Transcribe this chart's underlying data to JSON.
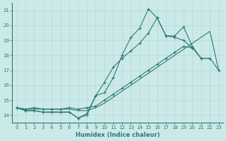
{
  "xlabel": "Humidex (Indice chaleur)",
  "xlim": [
    -0.5,
    23.5
  ],
  "ylim": [
    13.5,
    21.5
  ],
  "yticks": [
    14,
    15,
    16,
    17,
    18,
    19,
    20,
    21
  ],
  "xticks": [
    0,
    1,
    2,
    3,
    4,
    5,
    6,
    7,
    8,
    9,
    10,
    11,
    12,
    13,
    14,
    15,
    16,
    17,
    18,
    19,
    20,
    21,
    22,
    23
  ],
  "background_color": "#cce9e9",
  "grid_color": "#b0d8d8",
  "line_color": "#2d7a6e",
  "line1_y": [
    14.5,
    14.3,
    14.3,
    14.2,
    14.2,
    14.2,
    14.2,
    13.8,
    14.1,
    15.3,
    15.5,
    16.5,
    18.0,
    19.2,
    19.8,
    21.1,
    20.5,
    19.3,
    19.3,
    19.9,
    18.6,
    17.8,
    17.8,
    17.0
  ],
  "line2_y": [
    14.5,
    14.3,
    14.3,
    14.2,
    14.2,
    14.2,
    14.2,
    13.8,
    14.0,
    15.3,
    16.2,
    17.2,
    17.8,
    18.3,
    18.8,
    19.5,
    20.5,
    19.3,
    19.2,
    19.0,
    18.5,
    17.8,
    17.8,
    null
  ],
  "line3_y": [
    14.5,
    14.4,
    14.5,
    14.4,
    14.4,
    14.4,
    14.5,
    14.4,
    14.5,
    14.6,
    15.0,
    15.4,
    15.8,
    16.2,
    16.6,
    17.0,
    17.4,
    17.8,
    18.2,
    18.6,
    18.5,
    null,
    null,
    null
  ],
  "line4_y": [
    14.5,
    14.4,
    14.4,
    14.4,
    14.4,
    14.4,
    14.4,
    14.3,
    14.3,
    14.5,
    14.8,
    15.2,
    15.6,
    16.0,
    16.4,
    16.8,
    17.2,
    17.6,
    18.0,
    18.4,
    18.8,
    19.2,
    19.6,
    17.0
  ]
}
